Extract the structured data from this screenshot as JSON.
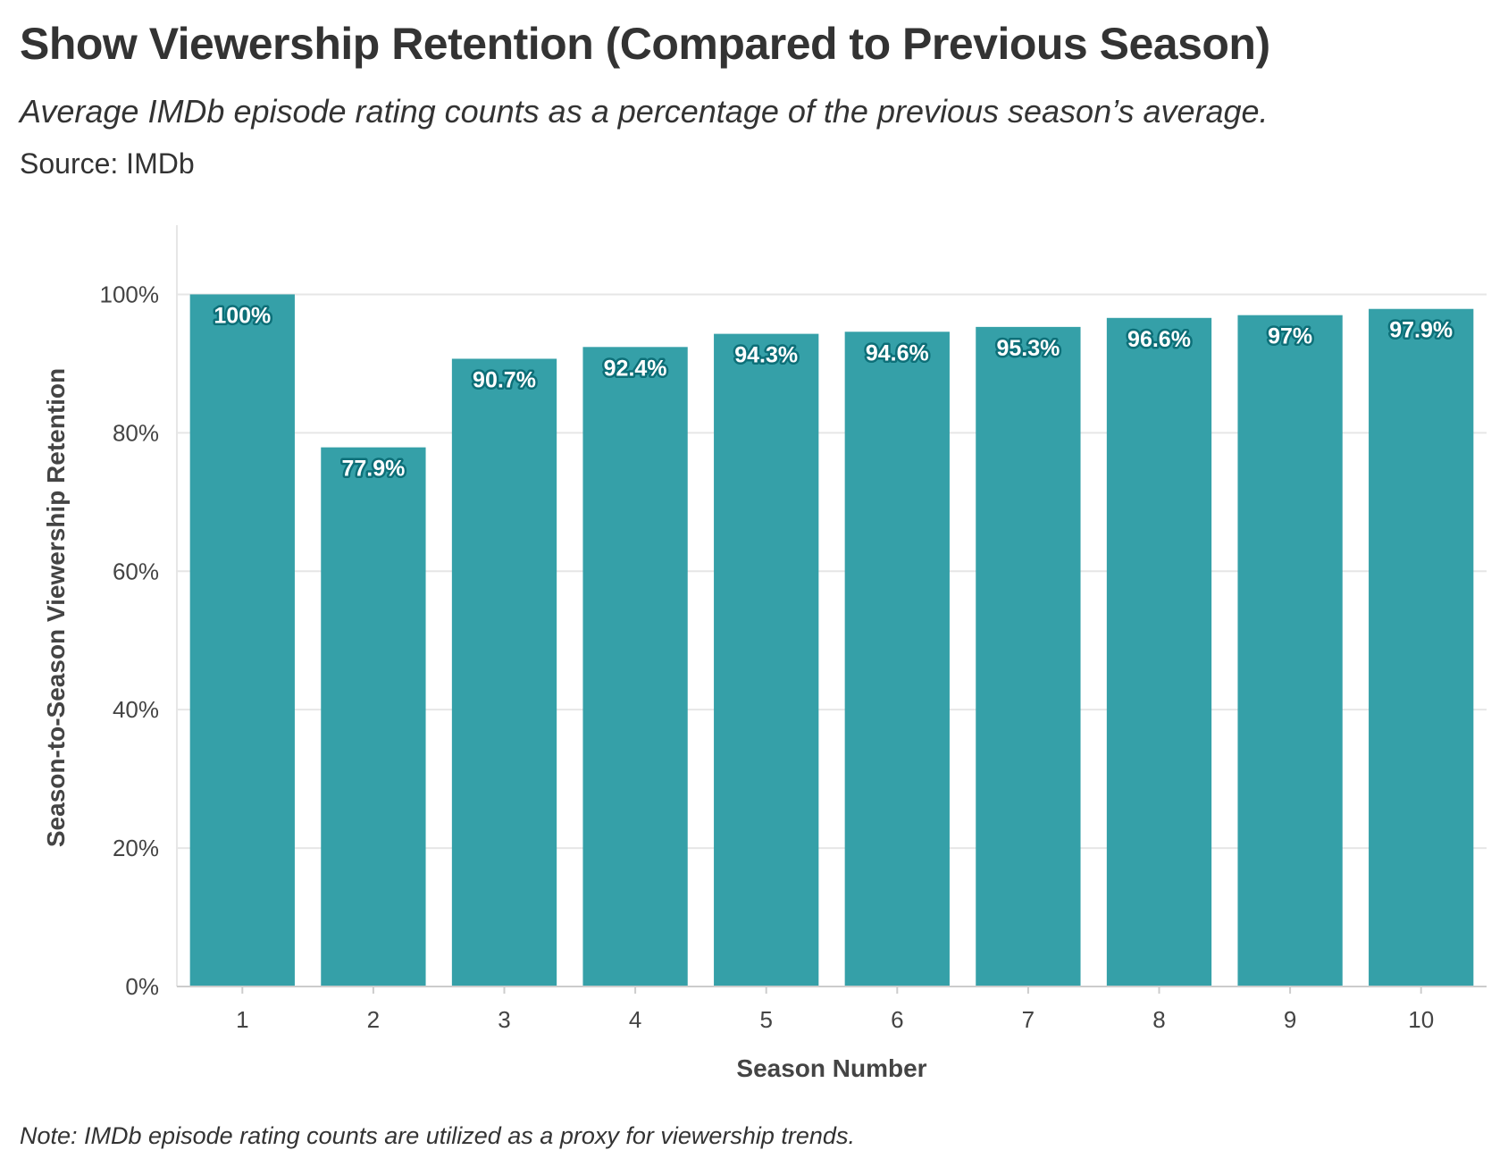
{
  "header": {
    "title": "Show Viewership Retention (Compared to Previous Season)",
    "subtitle": "Average IMDb episode rating counts as a percentage of the previous season’s average.",
    "source": "Source: IMDb"
  },
  "footer": {
    "note": "Note: IMDb episode rating counts are utilized as a proxy for viewership trends."
  },
  "colors": {
    "bar": "#35a0a8",
    "bar_label_outline": "#0d6f78",
    "grid": "#e6e6e6",
    "axis": "#cccccc"
  },
  "chart_data": {
    "type": "bar",
    "categories": [
      "1",
      "2",
      "3",
      "4",
      "5",
      "6",
      "7",
      "8",
      "9",
      "10"
    ],
    "values": [
      100,
      77.9,
      90.7,
      92.4,
      94.3,
      94.6,
      95.3,
      96.6,
      97,
      97.9
    ],
    "data_labels": [
      "100%",
      "77.9%",
      "90.7%",
      "92.4%",
      "94.3%",
      "94.6%",
      "95.3%",
      "96.6%",
      "97%",
      "97.9%"
    ],
    "xlabel": "Season Number",
    "ylabel": "Season-to-Season Viewership Retention",
    "ylim": [
      0,
      110
    ],
    "yticks": [
      0,
      20,
      40,
      60,
      80,
      100
    ],
    "ytick_labels": [
      "0%",
      "20%",
      "40%",
      "60%",
      "80%",
      "100%"
    ],
    "grid": true,
    "legend": false
  }
}
